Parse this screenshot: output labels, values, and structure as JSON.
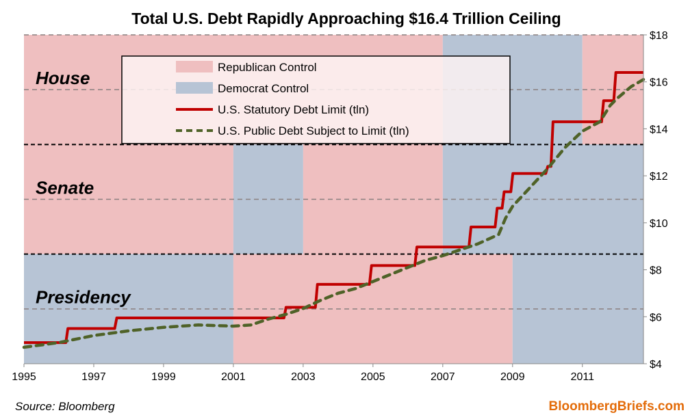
{
  "chart_data": {
    "type": "line",
    "title": "Total U.S. Debt Rapidly Approaching $16.4 Trillion Ceiling",
    "xlim": [
      1995,
      2012.75
    ],
    "ylim": [
      4,
      18
    ],
    "x_ticks": [
      "1995",
      "1997",
      "1999",
      "2001",
      "2003",
      "2005",
      "2007",
      "2009",
      "2011"
    ],
    "y_ticks": [
      "$4",
      "$6",
      "$8",
      "$10",
      "$12",
      "$14",
      "$16",
      "$18"
    ],
    "y_axis_side": "right",
    "colors": {
      "republican": "#efbfc0",
      "democrat": "#b7c4d5",
      "debt_limit": "#c00000",
      "public_debt": "#4f6228"
    },
    "bands": [
      {
        "label": "House",
        "periods": [
          {
            "from": 1995,
            "to": 2007,
            "party": "republican"
          },
          {
            "from": 2007,
            "to": 2011,
            "party": "democrat"
          },
          {
            "from": 2011,
            "to": 2012.75,
            "party": "republican"
          }
        ]
      },
      {
        "label": "Senate",
        "periods": [
          {
            "from": 1995,
            "to": 2001,
            "party": "republican"
          },
          {
            "from": 2001,
            "to": 2003,
            "party": "democrat"
          },
          {
            "from": 2003,
            "to": 2007,
            "party": "republican"
          },
          {
            "from": 2007,
            "to": 2012.75,
            "party": "democrat"
          }
        ]
      },
      {
        "label": "Presidency",
        "periods": [
          {
            "from": 1995,
            "to": 2001,
            "party": "democrat"
          },
          {
            "from": 2001,
            "to": 2009,
            "party": "republican"
          },
          {
            "from": 2009,
            "to": 2012.75,
            "party": "democrat"
          }
        ]
      }
    ],
    "legend": {
      "position": "top-left",
      "entries": [
        "Republican Control",
        "Democrat Control",
        "U.S. Statutory Debt Limit (tln)",
        "U.S. Public Debt Subject to Limit (tln)"
      ]
    },
    "series": [
      {
        "name": "U.S. Statutory Debt Limit (tln)",
        "style": "step",
        "points": [
          [
            1995,
            4.9
          ],
          [
            1996.2,
            5.5
          ],
          [
            1997.6,
            5.95
          ],
          [
            2002.45,
            6.4
          ],
          [
            2003.35,
            7.38
          ],
          [
            2004.9,
            8.18
          ],
          [
            2006.2,
            8.97
          ],
          [
            2007.75,
            9.82
          ],
          [
            2008.5,
            10.62
          ],
          [
            2008.7,
            11.32
          ],
          [
            2008.95,
            12.1
          ],
          [
            2009.95,
            12.4
          ],
          [
            2010.1,
            14.3
          ],
          [
            2011.55,
            15.2
          ],
          [
            2011.9,
            16.4
          ],
          [
            2012.75,
            16.4
          ]
        ]
      },
      {
        "name": "U.S. Public Debt Subject to Limit (tln)",
        "style": "dashed",
        "points": [
          [
            1995,
            4.7
          ],
          [
            1996,
            4.9
          ],
          [
            1996.5,
            5.05
          ],
          [
            1997,
            5.2
          ],
          [
            1998,
            5.4
          ],
          [
            1999,
            5.55
          ],
          [
            2000,
            5.65
          ],
          [
            2001,
            5.6
          ],
          [
            2001.5,
            5.65
          ],
          [
            2002,
            5.9
          ],
          [
            2002.5,
            6.1
          ],
          [
            2003,
            6.35
          ],
          [
            2003.5,
            6.7
          ],
          [
            2004,
            7.0
          ],
          [
            2004.5,
            7.2
          ],
          [
            2005,
            7.5
          ],
          [
            2005.5,
            7.8
          ],
          [
            2006,
            8.1
          ],
          [
            2006.5,
            8.4
          ],
          [
            2007,
            8.6
          ],
          [
            2007.5,
            8.85
          ],
          [
            2008,
            9.1
          ],
          [
            2008.3,
            9.3
          ],
          [
            2008.6,
            9.5
          ],
          [
            2008.8,
            10.2
          ],
          [
            2009,
            10.7
          ],
          [
            2009.5,
            11.5
          ],
          [
            2010,
            12.3
          ],
          [
            2010.5,
            13.2
          ],
          [
            2011,
            13.9
          ],
          [
            2011.5,
            14.3
          ],
          [
            2011.8,
            15.0
          ],
          [
            2012,
            15.3
          ],
          [
            2012.4,
            15.8
          ],
          [
            2012.75,
            16.1
          ]
        ]
      }
    ]
  },
  "footer": {
    "source": "Source: Bloomberg",
    "brand": "BloombergBriefs.com"
  }
}
